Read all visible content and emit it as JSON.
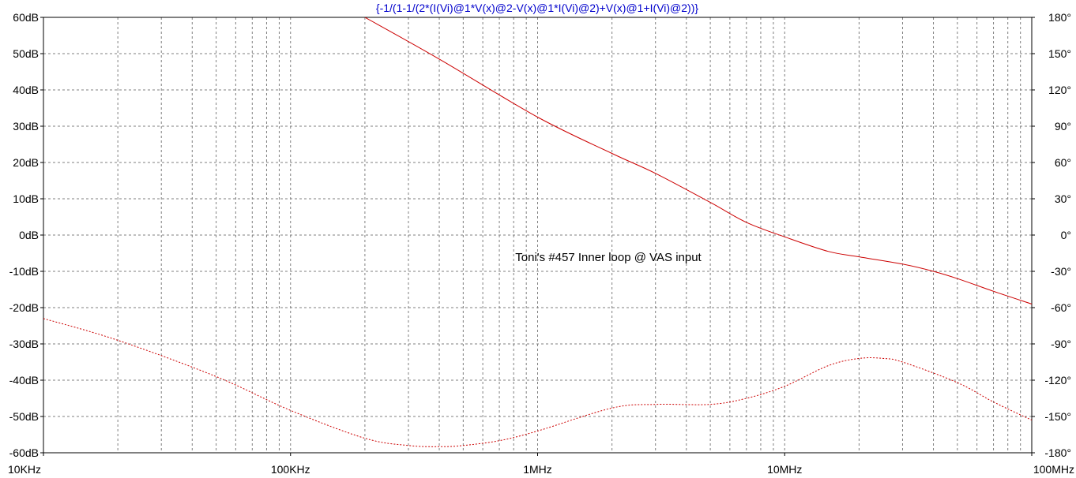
{
  "chart_data": {
    "type": "line",
    "title": "{-1/(1-1/(2*(I(Vi)@1*V(x)@2-V(x)@1*I(Vi)@2)+V(x)@1+I(Vi)@2))}",
    "annotation": "Toni's #457 Inner loop @ VAS input",
    "x_scale": "log",
    "xlim": [
      10000,
      100000000
    ],
    "ylim_left": [
      -60,
      60
    ],
    "ylim_right": [
      -180,
      180
    ],
    "grid": true,
    "x_tick_values": [
      10000,
      100000,
      1000000,
      10000000,
      100000000
    ],
    "x_tick_labels": [
      "10KHz",
      "100KHz",
      "1MHz",
      "10MHz",
      "100MHz"
    ],
    "y_left_tick_labels": [
      "60dB",
      "50dB",
      "40dB",
      "30dB",
      "20dB",
      "10dB",
      "0dB",
      "-10dB",
      "-20dB",
      "-30dB",
      "-40dB",
      "-50dB",
      "-60dB"
    ],
    "y_right_tick_labels": [
      "180°",
      "150°",
      "120°",
      "90°",
      "60°",
      "30°",
      "0°",
      "-30°",
      "-60°",
      "-90°",
      "-120°",
      "-150°",
      "-180°"
    ],
    "colors": {
      "trace": "#cc0000",
      "title": "#0000cc",
      "grid": "#7f7f7f",
      "axes": "#000000"
    },
    "series": [
      {
        "axis": "left",
        "unit": "dB",
        "line_style": "solid",
        "x": [
          200000,
          400000,
          1000000,
          2000000,
          3000000,
          5000000,
          7000000,
          10000000,
          15000000,
          20000000,
          30000000,
          40000000,
          50000000,
          70000000,
          100000000
        ],
        "y": [
          60,
          48.5,
          32.5,
          22.5,
          17,
          9,
          3.5,
          -0.5,
          -4.5,
          -6,
          -8,
          -10,
          -12,
          -15.5,
          -19
        ]
      },
      {
        "axis": "right",
        "unit": "°",
        "line_style": "dashed",
        "x": [
          10000,
          20000,
          50000,
          100000,
          200000,
          300000,
          400000,
          500000,
          700000,
          1000000,
          2000000,
          3000000,
          5000000,
          7000000,
          10000000,
          15000000,
          20000000,
          25000000,
          30000000,
          50000000,
          70000000,
          100000000
        ],
        "y": [
          -69,
          -87,
          -117,
          -145,
          -168,
          -174,
          -175,
          -174,
          -170,
          -162,
          -143,
          -140,
          -140,
          -135,
          -125,
          -108,
          -102,
          -102,
          -105,
          -122,
          -138,
          -153
        ]
      }
    ]
  }
}
